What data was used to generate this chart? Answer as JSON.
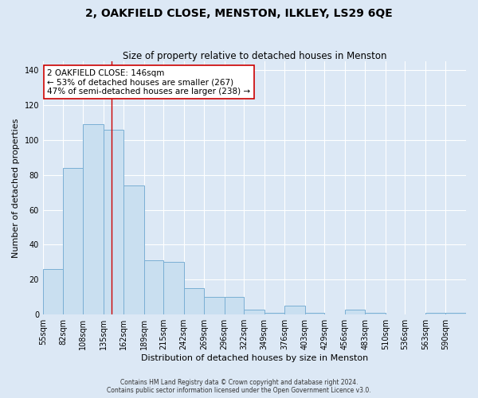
{
  "title": "2, OAKFIELD CLOSE, MENSTON, ILKLEY, LS29 6QE",
  "subtitle": "Size of property relative to detached houses in Menston",
  "xlabel": "Distribution of detached houses by size in Menston",
  "ylabel": "Number of detached properties",
  "categories": [
    "55sqm",
    "82sqm",
    "108sqm",
    "135sqm",
    "162sqm",
    "189sqm",
    "215sqm",
    "242sqm",
    "269sqm",
    "296sqm",
    "322sqm",
    "349sqm",
    "376sqm",
    "403sqm",
    "429sqm",
    "456sqm",
    "483sqm",
    "510sqm",
    "536sqm",
    "563sqm",
    "590sqm"
  ],
  "values": [
    26,
    84,
    109,
    106,
    74,
    31,
    30,
    15,
    10,
    10,
    3,
    1,
    5,
    1,
    0,
    3,
    1,
    0,
    0,
    1,
    1
  ],
  "bar_color": "#c9dff0",
  "bar_edge_color": "#7aafd4",
  "property_line_x": 146,
  "bin_edges": [
    55,
    82,
    108,
    135,
    162,
    189,
    215,
    242,
    269,
    296,
    322,
    349,
    376,
    403,
    429,
    456,
    483,
    510,
    536,
    563,
    590,
    617
  ],
  "annotation_text": "2 OAKFIELD CLOSE: 146sqm\n← 53% of detached houses are smaller (267)\n47% of semi-detached houses are larger (238) →",
  "annotation_box_color": "#ffffff",
  "annotation_box_edge_color": "#cc0000",
  "vline_color": "#cc0000",
  "ylim": [
    0,
    145
  ],
  "yticks": [
    0,
    20,
    40,
    60,
    80,
    100,
    120,
    140
  ],
  "footer_line1": "Contains HM Land Registry data © Crown copyright and database right 2024.",
  "footer_line2": "Contains public sector information licensed under the Open Government Licence v3.0.",
  "background_color": "#dce8f5",
  "plot_bg_color": "#dce8f5",
  "grid_color": "#ffffff",
  "title_fontsize": 10,
  "subtitle_fontsize": 8.5,
  "axis_label_fontsize": 8,
  "tick_fontsize": 7,
  "annotation_fontsize": 7.5,
  "footer_fontsize": 5.5
}
